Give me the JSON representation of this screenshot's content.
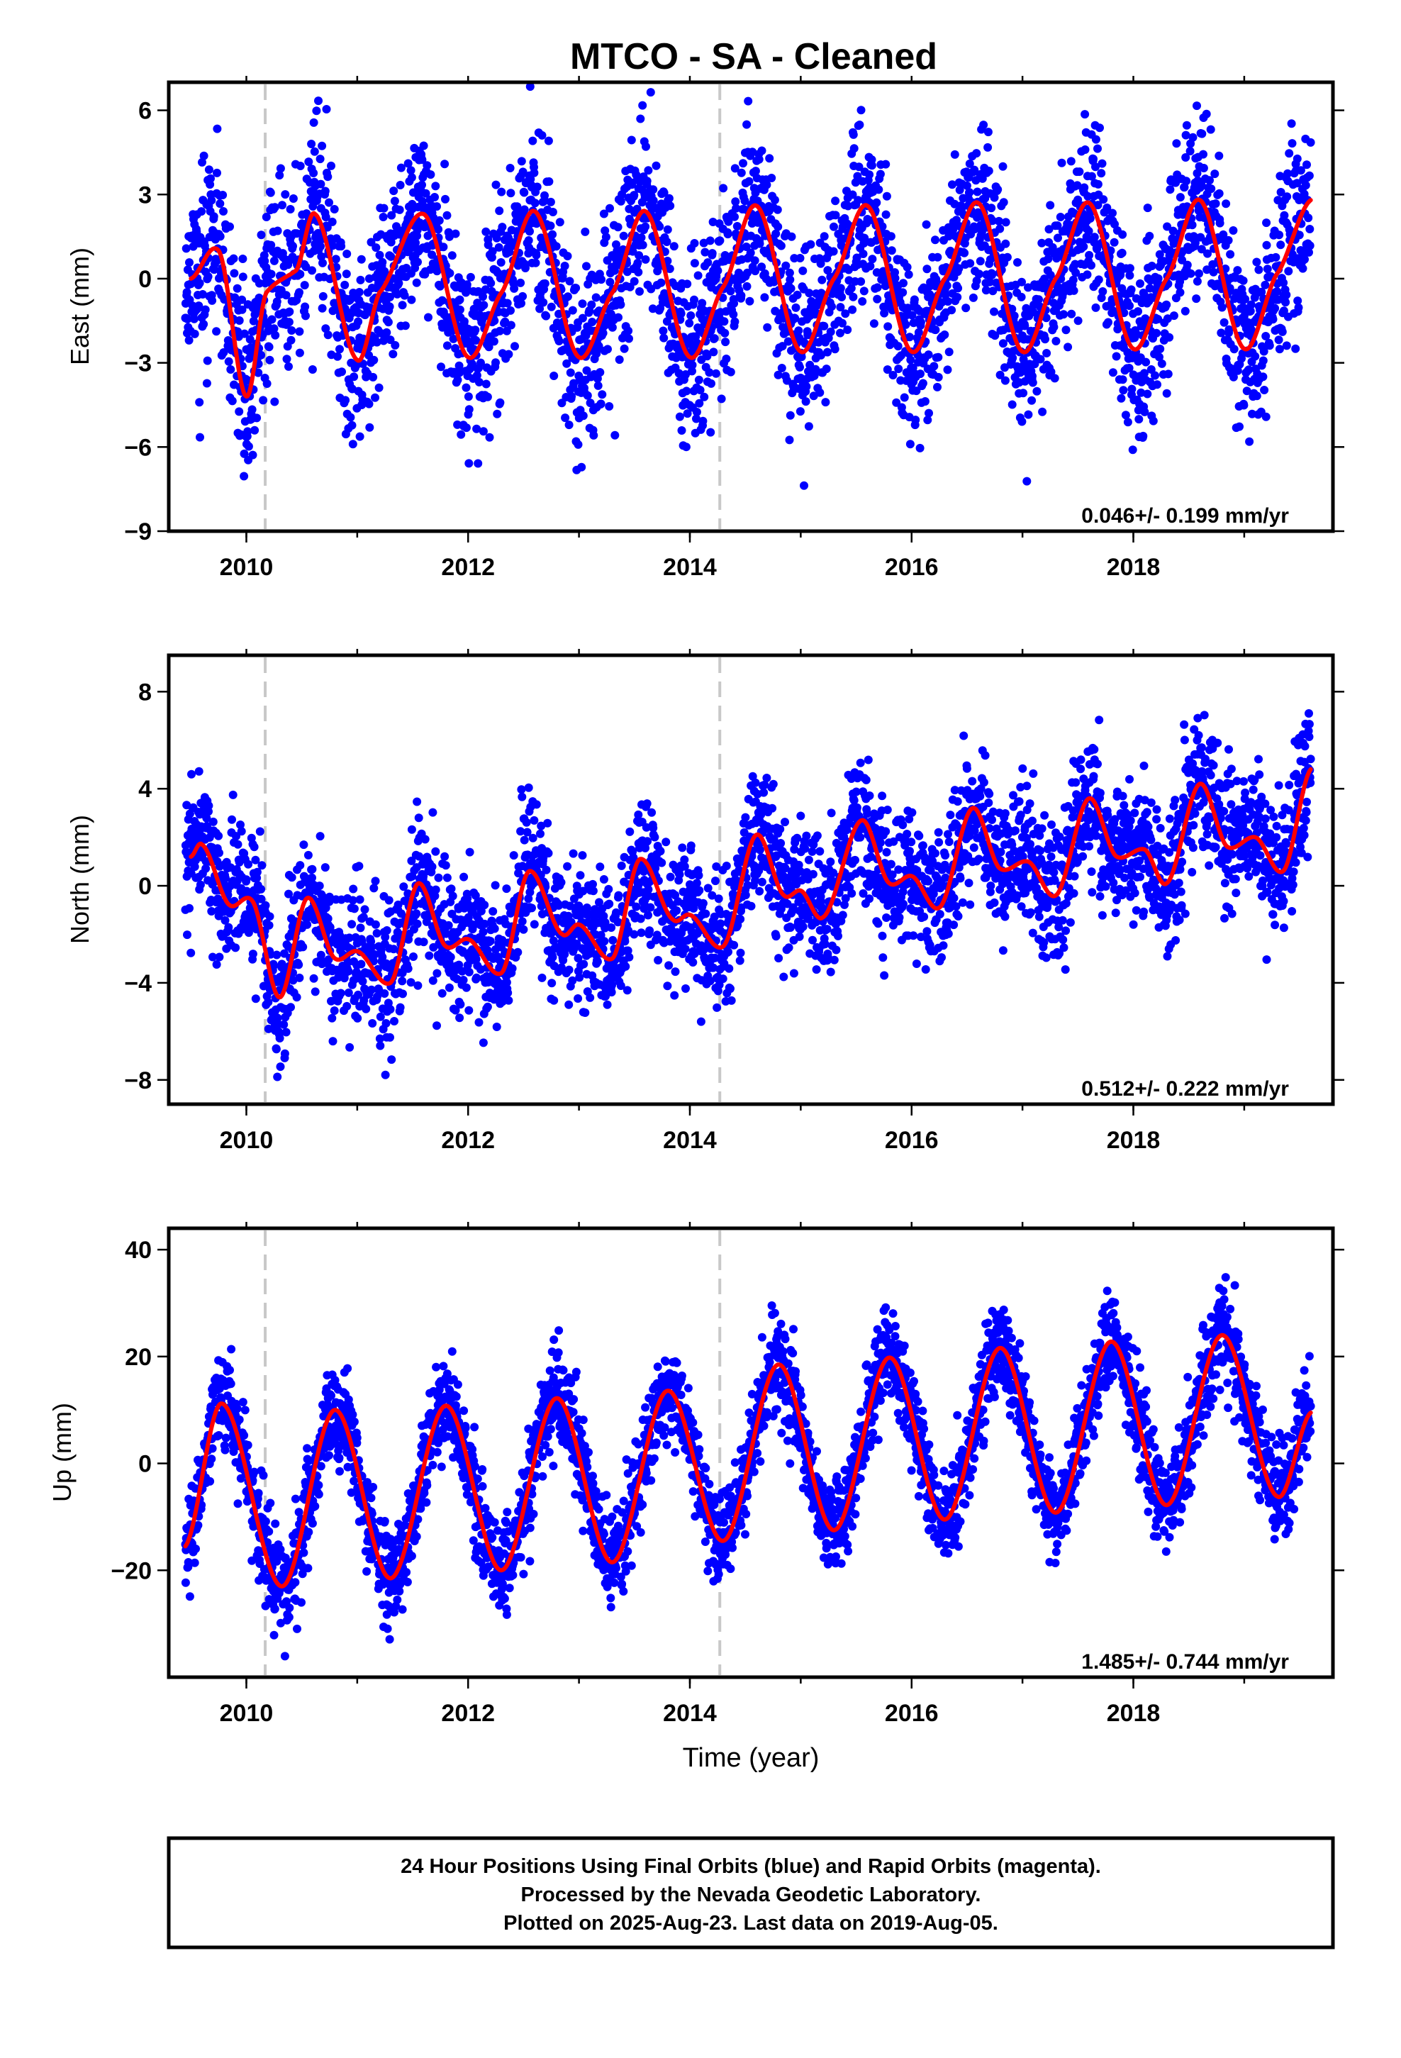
{
  "title": "MTCO  - SA - Cleaned",
  "footer": {
    "line1": "24 Hour Positions Using Final Orbits (blue) and Rapid Orbits (magenta).",
    "line2": "Processed by the Nevada Geodetic Laboratory.",
    "line3": "Plotted on 2025-Aug-23. Last data on 2019-Aug-05."
  },
  "colors": {
    "points": "#0000ff",
    "fit": "#ff0000",
    "event_line": "#c8c8c8",
    "frame": "#000000"
  },
  "chart_data": [
    {
      "type": "scatter",
      "ylabel": "East (mm)",
      "xlabel": "",
      "xlim": [
        2009.3,
        2019.8
      ],
      "ylim": [
        -9,
        7
      ],
      "xticks": [
        2010,
        2012,
        2014,
        2016,
        2018
      ],
      "yticks": [
        -9,
        -6,
        -3,
        0,
        3,
        6
      ],
      "event_lines": [
        2010.17,
        2014.27
      ],
      "data_range": [
        2009.45,
        2019.6
      ],
      "rate_text": "0.046+/- 0.199 mm/yr",
      "series": [
        {
          "values": "daily positions",
          "scatter_sd": 1.6,
          "seed": 11
        },
        {
          "fit_knots": {
            "x": [
              2009.5,
              2009.75,
              2010.0,
              2010.18,
              2010.45,
              2010.62,
              2011.0,
              2011.2,
              2011.6,
              2012.0,
              2012.3,
              2012.6,
              2013.0,
              2013.3,
              2013.6,
              2014.0,
              2014.3,
              2014.6,
              2015.0,
              2015.3,
              2015.6,
              2016.0,
              2016.3,
              2016.6,
              2017.0,
              2017.3,
              2017.6,
              2018.0,
              2018.3,
              2018.6,
              2019.0,
              2019.3,
              2019.6
            ],
            "y": [
              0.0,
              1.0,
              -4.2,
              -0.5,
              0.3,
              2.3,
              -2.9,
              -0.5,
              2.3,
              -2.8,
              -0.5,
              2.4,
              -2.8,
              -0.5,
              2.4,
              -2.8,
              -0.3,
              2.6,
              -2.6,
              0.0,
              2.6,
              -2.6,
              0.0,
              2.7,
              -2.6,
              0.0,
              2.7,
              -2.5,
              0.0,
              2.8,
              -2.5,
              0.2,
              2.8
            ]
          }
        }
      ]
    },
    {
      "type": "scatter",
      "ylabel": "North (mm)",
      "xlabel": "",
      "xlim": [
        2009.3,
        2019.8
      ],
      "ylim": [
        -9,
        9.5
      ],
      "xticks": [
        2010,
        2012,
        2014,
        2016,
        2018
      ],
      "yticks": [
        -8,
        -4,
        0,
        4,
        8
      ],
      "event_lines": [
        2010.17,
        2014.27
      ],
      "data_range": [
        2009.45,
        2019.6
      ],
      "rate_text": "0.512+/- 0.222 mm/yr",
      "series": [
        {
          "values": "daily positions",
          "scatter_sd": 1.4,
          "seed": 23
        },
        {
          "fit_knots": {
            "x": [
              2009.5,
              2009.6,
              2009.85,
              2010.05,
              2010.3,
              2010.55,
              2010.8,
              2011.0,
              2011.3,
              2011.55,
              2011.8,
              2012.0,
              2012.3,
              2012.55,
              2012.85,
              2013.0,
              2013.3,
              2013.55,
              2013.85,
              2014.0,
              2014.3,
              2014.6,
              2014.85,
              2015.0,
              2015.2,
              2015.55,
              2015.8,
              2016.0,
              2016.25,
              2016.55,
              2016.8,
              2017.05,
              2017.3,
              2017.6,
              2017.85,
              2018.1,
              2018.3,
              2018.6,
              2018.85,
              2019.1,
              2019.35,
              2019.6
            ],
            "y": [
              1.2,
              1.7,
              -0.8,
              -0.6,
              -4.6,
              -0.5,
              -3.0,
              -2.7,
              -4.0,
              0.1,
              -2.5,
              -2.2,
              -3.6,
              0.6,
              -2.0,
              -1.6,
              -3.0,
              1.1,
              -1.4,
              -1.2,
              -2.5,
              2.1,
              -0.4,
              -0.2,
              -1.3,
              2.7,
              0.1,
              0.4,
              -0.9,
              3.2,
              0.7,
              1.0,
              -0.4,
              3.6,
              1.2,
              1.5,
              0.1,
              4.2,
              1.6,
              2.0,
              0.6,
              4.8
            ]
          }
        }
      ]
    },
    {
      "type": "scatter",
      "ylabel": "Up (mm)",
      "xlabel": "Time (year)",
      "xlim": [
        2009.3,
        2019.8
      ],
      "ylim": [
        -40,
        44
      ],
      "xticks": [
        2010,
        2012,
        2014,
        2016,
        2018
      ],
      "yticks": [
        -20,
        0,
        20,
        40
      ],
      "event_lines": [
        2010.17,
        2014.27
      ],
      "data_range": [
        2009.45,
        2019.6
      ],
      "rate_text": "1.485+/- 0.744 mm/yr",
      "series": [
        {
          "values": "daily positions",
          "scatter_sd": 4.5,
          "seed": 37
        },
        {
          "fit_knots": {
            "x": [
              2009.45,
              2009.78,
              2010.32,
              2010.8,
              2011.3,
              2011.8,
              2012.3,
              2012.8,
              2013.3,
              2013.8,
              2014.3,
              2014.8,
              2015.3,
              2015.8,
              2016.3,
              2016.8,
              2017.3,
              2017.8,
              2018.3,
              2018.8,
              2019.3,
              2019.6
            ],
            "y": [
              -15.5,
              11.2,
              -23.0,
              10.0,
              -21.5,
              10.8,
              -20.0,
              12.2,
              -18.5,
              13.6,
              -14.5,
              18.5,
              -12.5,
              19.8,
              -10.5,
              21.6,
              -9.2,
              22.8,
              -7.8,
              24.0,
              -6.2,
              9.5
            ]
          }
        }
      ]
    }
  ]
}
